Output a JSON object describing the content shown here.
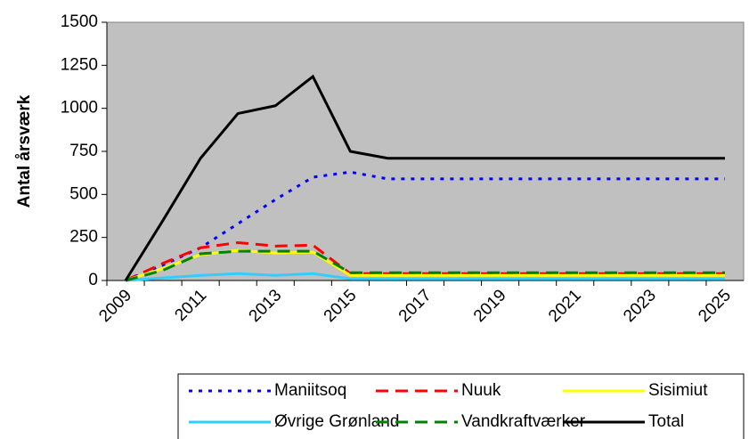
{
  "chart_data": {
    "type": "line",
    "y_label": "Antal årsværk",
    "categories": [
      "2009",
      null,
      "2011",
      null,
      "2013",
      null,
      "2015",
      null,
      "2017",
      null,
      "2019",
      null,
      "2021",
      null,
      "2023",
      null,
      "2025"
    ],
    "ylim": [
      0,
      1500
    ],
    "yticks": [
      0,
      250,
      500,
      750,
      1000,
      1250,
      1500
    ],
    "grid": false,
    "background": "#c0c0c0",
    "series": [
      {
        "name": "Maniitsoq",
        "color": "#0000ff",
        "style": "dotted",
        "values": [
          0,
          90,
          190,
          330,
          470,
          600,
          630,
          590,
          590,
          590,
          590,
          590,
          590,
          590,
          590,
          590,
          590
        ]
      },
      {
        "name": "Nuuk",
        "color": "#ff0000",
        "style": "dashed",
        "values": [
          0,
          100,
          190,
          220,
          200,
          205,
          40,
          40,
          40,
          40,
          40,
          40,
          40,
          40,
          40,
          40,
          40
        ]
      },
      {
        "name": "Sisimiut",
        "color": "#ffff00",
        "style": "solid",
        "values": [
          0,
          70,
          150,
          175,
          160,
          165,
          30,
          30,
          30,
          30,
          30,
          30,
          30,
          30,
          30,
          30,
          30
        ]
      },
      {
        "name": "Øvrige Grønland",
        "color": "#33ccff",
        "style": "solid",
        "values": [
          0,
          15,
          30,
          40,
          30,
          40,
          10,
          10,
          10,
          10,
          10,
          10,
          10,
          10,
          10,
          10,
          10
        ]
      },
      {
        "name": "Vandkraftværker",
        "color": "#008000",
        "style": "dashed",
        "values": [
          0,
          60,
          155,
          170,
          170,
          170,
          45,
          45,
          45,
          45,
          45,
          45,
          45,
          45,
          45,
          45,
          45
        ]
      },
      {
        "name": "Total",
        "color": "#000000",
        "style": "solid",
        "values": [
          0,
          350,
          710,
          970,
          1015,
          1185,
          750,
          710,
          710,
          710,
          710,
          710,
          710,
          710,
          710,
          710,
          710
        ]
      }
    ]
  }
}
